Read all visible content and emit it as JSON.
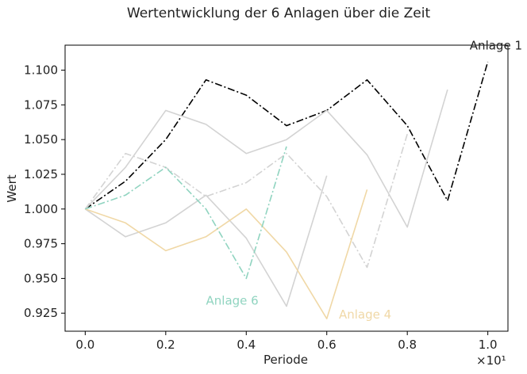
{
  "chart_data": {
    "type": "line",
    "title": "Wertentwicklung der 6 Anlagen über die Zeit",
    "xlabel": "Periode",
    "ylabel": "Wert",
    "x_scale_note": "×10¹",
    "xlim": [
      -0.05,
      1.05
    ],
    "ylim": [
      0.912,
      1.118
    ],
    "x_ticks": [
      "0.0",
      "0.2",
      "0.4",
      "0.6",
      "0.8",
      "1.0"
    ],
    "y_ticks": [
      "0.925",
      "0.950",
      "0.975",
      "1.000",
      "1.025",
      "1.050",
      "1.075",
      "1.100"
    ],
    "grid": false,
    "series": [
      {
        "name": "Anlage 1",
        "color": "#000000",
        "dash": "dashdot",
        "labeled": true,
        "x": [
          0.0,
          0.1,
          0.2,
          0.3,
          0.4,
          0.5,
          0.6,
          0.7,
          0.8,
          0.9,
          1.0
        ],
        "values": [
          1.0,
          1.02,
          1.05,
          1.093,
          1.082,
          1.06,
          1.071,
          1.093,
          1.06,
          1.006,
          1.106
        ]
      },
      {
        "name": "",
        "color": "#d3d3d3",
        "dash": "solid",
        "labeled": false,
        "x": [
          0.0,
          0.1,
          0.2,
          0.3,
          0.4,
          0.5,
          0.6,
          0.7,
          0.8,
          0.9
        ],
        "values": [
          1.0,
          1.03,
          1.071,
          1.061,
          1.04,
          1.05,
          1.071,
          1.039,
          0.987,
          1.086
        ]
      },
      {
        "name": "",
        "color": "#d3d3d3",
        "dash": "dashdot",
        "labeled": false,
        "x": [
          0.0,
          0.1,
          0.2,
          0.3,
          0.4,
          0.5,
          0.6,
          0.7,
          0.8
        ],
        "values": [
          1.0,
          1.04,
          1.03,
          1.009,
          1.019,
          1.04,
          1.009,
          0.958,
          1.054
        ]
      },
      {
        "name": "",
        "color": "#d3d3d3",
        "dash": "solid",
        "labeled": false,
        "x": [
          0.0,
          0.1,
          0.2,
          0.3,
          0.4,
          0.5,
          0.6
        ],
        "values": [
          1.0,
          0.98,
          0.99,
          1.01,
          0.979,
          0.93,
          1.024
        ]
      },
      {
        "name": "Anlage 4",
        "color": "#f0d8a6",
        "dash": "solid",
        "labeled": true,
        "x": [
          0.0,
          0.1,
          0.2,
          0.3,
          0.4,
          0.5,
          0.6,
          0.7
        ],
        "values": [
          1.0,
          0.99,
          0.97,
          0.98,
          1.0,
          0.969,
          0.921,
          1.014
        ]
      },
      {
        "name": "Anlage 6",
        "color": "#90d4c0",
        "dash": "dashdot",
        "labeled": true,
        "x": [
          0.0,
          0.1,
          0.2,
          0.3,
          0.4,
          0.5
        ],
        "values": [
          1.0,
          1.01,
          1.03,
          1.0,
          0.95,
          1.045
        ]
      }
    ],
    "annotations": [
      {
        "text": "Anlage 1",
        "series": 0,
        "x": 0.955,
        "y": 1.115,
        "color": "#222222"
      },
      {
        "text": "Anlage 6",
        "series": 5,
        "x": 0.3,
        "y": 0.931,
        "color": "#90d4c0"
      },
      {
        "text": "Anlage 4",
        "series": 4,
        "x": 0.63,
        "y": 0.921,
        "color": "#f0d8a6"
      }
    ]
  }
}
